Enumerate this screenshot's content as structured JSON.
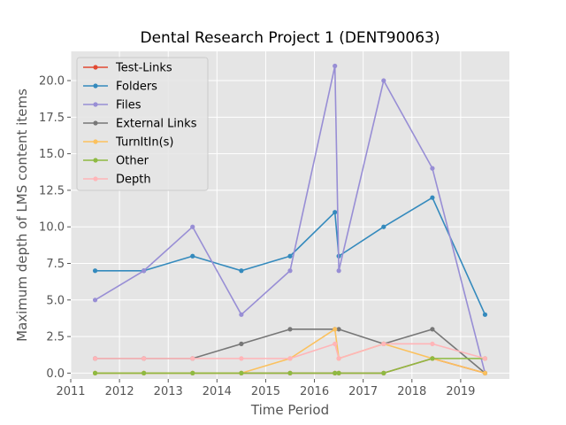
{
  "chart_data": {
    "type": "line",
    "title": "Dental Research Project 1 (DENT90063)",
    "xlabel": "Time Period",
    "ylabel": "Maximum depth of LMS content items",
    "xlim": [
      2011,
      2020
    ],
    "ylim": [
      -0.4,
      22.0
    ],
    "xticks": [
      "2011",
      "2012",
      "2013",
      "2014",
      "2015",
      "2016",
      "2017",
      "2018",
      "2019"
    ],
    "yticks": [
      "0.0",
      "2.5",
      "5.0",
      "7.5",
      "10.0",
      "12.5",
      "15.0",
      "17.5",
      "20.0"
    ],
    "grid": true,
    "legend_position": "top-left",
    "x": [
      2011.5,
      2012.5,
      2013.5,
      2014.5,
      2015.5,
      2016.42,
      2016.5,
      2017.42,
      2018.42,
      2019.5
    ],
    "series": [
      {
        "name": "Test-Links",
        "color": "#e24a33",
        "values": [
          0,
          0,
          0,
          0,
          0,
          0,
          0,
          0,
          1,
          0
        ]
      },
      {
        "name": "Folders",
        "color": "#348abd",
        "values": [
          7,
          7,
          8,
          7,
          8,
          11,
          8,
          10,
          12,
          4
        ]
      },
      {
        "name": "Files",
        "color": "#988ed5",
        "values": [
          5,
          7,
          10,
          4,
          7,
          21,
          7,
          20,
          14,
          0
        ]
      },
      {
        "name": "External Links",
        "color": "#777777",
        "values": [
          1,
          1,
          1,
          2,
          3,
          3,
          3,
          2,
          3,
          0
        ]
      },
      {
        "name": "TurnItIn(s)",
        "color": "#fbc15e",
        "values": [
          0,
          0,
          0,
          0,
          1,
          3,
          1,
          2,
          1,
          0
        ]
      },
      {
        "name": "Other",
        "color": "#8eba42",
        "values": [
          0,
          0,
          0,
          0,
          0,
          0,
          0,
          0,
          1,
          1
        ]
      },
      {
        "name": "Depth",
        "color": "#ffb5b8",
        "values": [
          1,
          1,
          1,
          1,
          1,
          2,
          1,
          2,
          2,
          1
        ]
      }
    ]
  }
}
